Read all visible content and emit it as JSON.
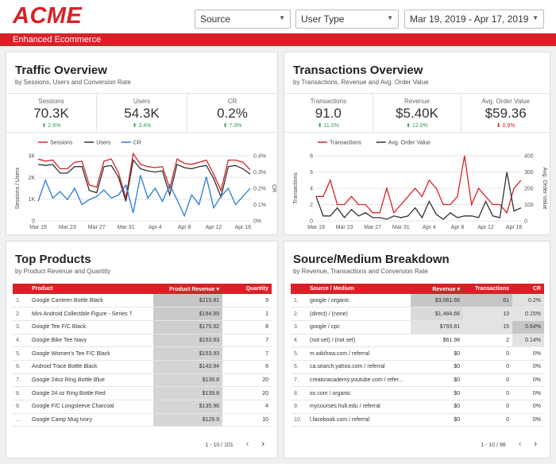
{
  "header": {
    "logo": "ACME",
    "filters": [
      {
        "label": "Source"
      },
      {
        "label": "User Type"
      },
      {
        "label": "Mar 19, 2019 - Apr 17, 2019"
      }
    ],
    "banner": "Enhanced Ecommerce",
    "colors": {
      "brand": "#d82127"
    }
  },
  "traffic": {
    "title": "Traffic Overview",
    "subtitle": "by Sessions, Users and Conversion Rate",
    "kpis": [
      {
        "label": "Sessions",
        "value": "70.3K",
        "change": "2.6%",
        "dir": "up"
      },
      {
        "label": "Users",
        "value": "54.3K",
        "change": "3.4%",
        "dir": "up"
      },
      {
        "label": "CR",
        "value": "0.2%",
        "change": "7.3%",
        "dir": "up"
      }
    ]
  },
  "transactions": {
    "title": "Transactions Overview",
    "subtitle": "by Transactions, Revenue and Avg. Order Value",
    "kpis": [
      {
        "label": "Transactions",
        "value": "91.0",
        "change": "11.0%",
        "dir": "up"
      },
      {
        "label": "Revenue",
        "value": "$5.40K",
        "change": "12.0%",
        "dir": "up"
      },
      {
        "label": "Avg. Order Value",
        "value": "$59.36",
        "change": "0.9%",
        "dir": "down"
      }
    ]
  },
  "chart_data": [
    {
      "type": "line",
      "x": [
        "Mar 19",
        "Mar 20",
        "Mar 21",
        "Mar 22",
        "Mar 23",
        "Mar 24",
        "Mar 25",
        "Mar 26",
        "Mar 27",
        "Mar 28",
        "Mar 29",
        "Mar 30",
        "Mar 31",
        "Apr 1",
        "Apr 2",
        "Apr 3",
        "Apr 4",
        "Apr 5",
        "Apr 6",
        "Apr 7",
        "Apr 8",
        "Apr 9",
        "Apr 10",
        "Apr 11",
        "Apr 12",
        "Apr 13",
        "Apr 14",
        "Apr 15",
        "Apr 16",
        "Apr 17"
      ],
      "xticks": [
        "Mar 19",
        "Mar 23",
        "Mar 27",
        "Mar 31",
        "Apr 4",
        "Apr 8",
        "Apr 12",
        "Apr 16"
      ],
      "series": [
        {
          "name": "Sessions",
          "axis": "left",
          "color": "#d82127",
          "values": [
            2850,
            2750,
            2800,
            2400,
            2400,
            2700,
            2750,
            1650,
            1550,
            2750,
            2850,
            2200,
            1050,
            3100,
            2600,
            2500,
            2450,
            2500,
            1500,
            2850,
            2650,
            2600,
            2700,
            2800,
            2150,
            1400,
            2800,
            2800,
            2700,
            2350
          ]
        },
        {
          "name": "Users",
          "axis": "left",
          "color": "#333333",
          "values": [
            2600,
            2550,
            2600,
            2200,
            2200,
            2500,
            2500,
            1400,
            1300,
            2500,
            2550,
            2000,
            900,
            2800,
            2400,
            2300,
            2250,
            2300,
            1200,
            2600,
            2450,
            2400,
            2500,
            2550,
            1950,
            1100,
            2500,
            2550,
            2400,
            2150
          ]
        },
        {
          "name": "CR",
          "axis": "right",
          "color": "#2a7ad8",
          "values": [
            0.12,
            0.25,
            0.14,
            0.18,
            0.13,
            0.2,
            0.1,
            0.13,
            0.15,
            0.19,
            0.14,
            0.16,
            0.22,
            0.05,
            0.28,
            0.14,
            0.2,
            0.12,
            0.22,
            0.13,
            0.03,
            0.16,
            0.1,
            0.27,
            0.08,
            0.15,
            0.2,
            0.1,
            0.15,
            0.2
          ]
        }
      ],
      "ylabel_left": "Sessions / Users",
      "ylabel_right": "CR",
      "yticks_left": [
        "0",
        "1K",
        "2K",
        "3K"
      ],
      "yticks_right": [
        "0%",
        "0.1%",
        "0.2%",
        "0.3%",
        "0.4%"
      ],
      "ylim_left": [
        0,
        3000
      ],
      "ylim_right": [
        0,
        0.4
      ],
      "legend": "top"
    },
    {
      "type": "line",
      "x": [
        "Mar 19",
        "Mar 20",
        "Mar 21",
        "Mar 22",
        "Mar 23",
        "Mar 24",
        "Mar 25",
        "Mar 26",
        "Mar 27",
        "Mar 28",
        "Mar 29",
        "Mar 30",
        "Mar 31",
        "Apr 1",
        "Apr 2",
        "Apr 3",
        "Apr 4",
        "Apr 5",
        "Apr 6",
        "Apr 7",
        "Apr 8",
        "Apr 9",
        "Apr 10",
        "Apr 11",
        "Apr 12",
        "Apr 13",
        "Apr 14",
        "Apr 15",
        "Apr 16",
        "Apr 17"
      ],
      "xticks": [
        "Mar 19",
        "Mar 23",
        "Mar 27",
        "Mar 31",
        "Apr 4",
        "Apr 8",
        "Apr 12",
        "Apr 16"
      ],
      "series": [
        {
          "name": "Transactions",
          "axis": "left",
          "color": "#d82127",
          "values": [
            3,
            3,
            5,
            2,
            2,
            3,
            2,
            2,
            1,
            1,
            4,
            1,
            2,
            3,
            4,
            3,
            5,
            4,
            2,
            2,
            3,
            8,
            2,
            4,
            3,
            2,
            2,
            1,
            4,
            5
          ]
        },
        {
          "name": "Avg. Order Value",
          "axis": "right",
          "color": "#333333",
          "values": [
            150,
            30,
            30,
            80,
            20,
            70,
            30,
            50,
            20,
            20,
            10,
            30,
            20,
            30,
            80,
            20,
            120,
            40,
            10,
            50,
            20,
            30,
            30,
            20,
            120,
            30,
            20,
            300,
            60,
            80
          ]
        }
      ],
      "ylabel_left": "Transactions",
      "ylabel_right": "Avg. Order Value",
      "yticks_left": [
        "0",
        "2",
        "4",
        "6",
        "8"
      ],
      "yticks_right": [
        "0",
        "100",
        "200",
        "300",
        "400"
      ],
      "ylim_left": [
        0,
        8
      ],
      "ylim_right": [
        0,
        400
      ],
      "legend": "top"
    }
  ],
  "products": {
    "title": "Top Products",
    "subtitle": "by Product Revenue and Quantity",
    "columns": [
      "Product",
      "Product Revenue ▾",
      "Quantity"
    ],
    "rows": [
      {
        "idx": "1.",
        "name": "Google Canteen Bottle Black",
        "revenue": "$215.91",
        "qty": "9",
        "shade": 1.0
      },
      {
        "idx": "2.",
        "name": "Mini Android Collectible Figure - Series 7",
        "revenue": "$194.99",
        "qty": "1",
        "shade": 0.9
      },
      {
        "idx": "3.",
        "name": "Google Tee F/C Black",
        "revenue": "$175.92",
        "qty": "8",
        "shade": 0.8
      },
      {
        "idx": "4.",
        "name": "Google Bike Tee Navy",
        "revenue": "$153.93",
        "qty": "7",
        "shade": 0.7
      },
      {
        "idx": "5.",
        "name": "Google Women's Tee F/C Black",
        "revenue": "$153.93",
        "qty": "7",
        "shade": 0.7
      },
      {
        "idx": "6.",
        "name": "Android Trace Bottle Black",
        "revenue": "$143.94",
        "qty": "6",
        "shade": 0.65
      },
      {
        "idx": "7.",
        "name": "Google 24oz Ring Bottle Blue",
        "revenue": "$139.8",
        "qty": "20",
        "shade": 0.63
      },
      {
        "idx": "8.",
        "name": "Google 24 oz Ring Bottle Red",
        "revenue": "$139.8",
        "qty": "20",
        "shade": 0.63
      },
      {
        "idx": "9.",
        "name": "Google F/C Longsleeve Charcoal",
        "revenue": "$135.96",
        "qty": "4",
        "shade": 0.6
      },
      {
        "idx": "...",
        "name": "Google Camp Mug Ivory",
        "revenue": "$129.9",
        "qty": "10",
        "shade": 0.58
      }
    ],
    "pager": "1 - 10 / 101"
  },
  "sources": {
    "title": "Source/Medium Breakdown",
    "subtitle": "by Revenue, Transactions and Conversion Rate",
    "columns": [
      "Source / Medium",
      "Revenue ▾",
      "Transactions",
      "CR"
    ],
    "rows": [
      {
        "idx": "1.",
        "name": "google / organic",
        "revenue": "$3,061.66",
        "tx": "61",
        "cr": "0.2%",
        "r": 1.0,
        "t": 1.0,
        "c": 0.3
      },
      {
        "idx": "2.",
        "name": "(direct) / (none)",
        "revenue": "$1,484.66",
        "tx": "13",
        "cr": "0.15%",
        "r": 0.48,
        "t": 0.21,
        "c": 0.23
      },
      {
        "idx": "3.",
        "name": "google / cpc",
        "revenue": "$793.81",
        "tx": "15",
        "cr": "0.64%",
        "r": 0.26,
        "t": 0.25,
        "c": 1.0
      },
      {
        "idx": "4.",
        "name": "(not set) / (not set)",
        "revenue": "$61.98",
        "tx": "2",
        "cr": "0.14%",
        "r": 0.0,
        "t": 0.0,
        "c": 0.22
      },
      {
        "idx": "5.",
        "name": "m.wikihow.com / referral",
        "revenue": "$0",
        "tx": "0",
        "cr": "0%",
        "r": 0,
        "t": 0,
        "c": 0
      },
      {
        "idx": "6.",
        "name": "ca.search.yahoo.com / referral",
        "revenue": "$0",
        "tx": "0",
        "cr": "0%",
        "r": 0,
        "t": 0,
        "c": 0
      },
      {
        "idx": "7.",
        "name": "creatoracademy.youtube.com / refer...",
        "revenue": "$0",
        "tx": "0",
        "cr": "0%",
        "r": 0,
        "t": 0,
        "c": 0
      },
      {
        "idx": "8.",
        "name": "so.com / organic",
        "revenue": "$0",
        "tx": "0",
        "cr": "0%",
        "r": 0,
        "t": 0,
        "c": 0
      },
      {
        "idx": "9.",
        "name": "mycourses.hult.edu / referral",
        "revenue": "$0",
        "tx": "0",
        "cr": "0%",
        "r": 0,
        "t": 0,
        "c": 0
      },
      {
        "idx": "10.",
        "name": "l.facebook.com / referral",
        "revenue": "$0",
        "tx": "0",
        "cr": "0%",
        "r": 0,
        "t": 0,
        "c": 0
      }
    ],
    "pager": "1 - 10 / 98"
  }
}
